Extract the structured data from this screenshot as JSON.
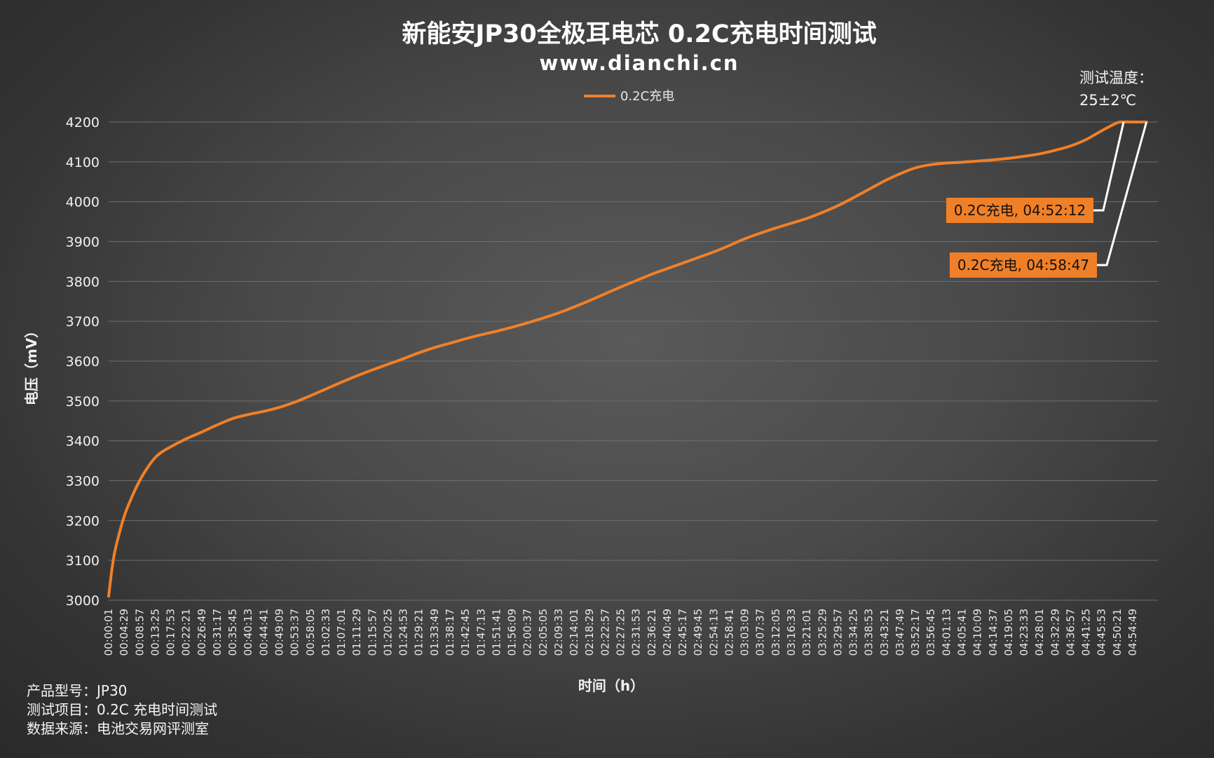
{
  "title": "新能安JP30全极耳电芯 0.2C充电时间测试",
  "subtitle": "www.dianchi.cn",
  "temperature_note": {
    "line1": "测试温度：",
    "line2": "25±2℃"
  },
  "footer": {
    "line1": "产品型号：JP30",
    "line2": "测试项目：0.2C 充电时间测试",
    "line3": "数据来源：电池交易网评测室"
  },
  "callouts": [
    {
      "text": "0.2C充电, 04:52:12",
      "x_sec": 17532,
      "y": 4200
    },
    {
      "text": "0.2C充电, 04:58:47",
      "x_sec": 17927,
      "y": 4200
    }
  ],
  "colors": {
    "series": "#f08028",
    "callout_bg": "#f08028",
    "grid": "#6e6e6e",
    "leader": "#ffffff"
  },
  "chart_data": {
    "type": "line",
    "title": "新能安JP30全极耳电芯 0.2C充电时间测试",
    "subtitle": "www.dianchi.cn",
    "xlabel": "时间（h）",
    "ylabel": "电压（mV）",
    "ylim": [
      3000,
      4200
    ],
    "yticks": [
      3000,
      3100,
      3200,
      3300,
      3400,
      3500,
      3600,
      3700,
      3800,
      3900,
      4000,
      4100,
      4200
    ],
    "grid": true,
    "legend_position": "top-center",
    "x_ticklabels": [
      "00:00:01",
      "00:04:29",
      "00:08:57",
      "00:13:25",
      "00:17:53",
      "00:22:21",
      "00:26:49",
      "00:31:17",
      "00:35:45",
      "00:40:13",
      "00:44:41",
      "00:49:09",
      "00:53:37",
      "00:58:05",
      "01:02:33",
      "01:07:01",
      "01:11:29",
      "01:15:57",
      "01:20:25",
      "01:24:53",
      "01:29:21",
      "01:33:49",
      "01:38:17",
      "01:42:45",
      "01:47:13",
      "01:51:41",
      "01:56:09",
      "02:00:37",
      "02:05:05",
      "02:09:33",
      "02:14:01",
      "02:18:29",
      "02:22:57",
      "02:27:25",
      "02:31:53",
      "02:36:21",
      "02:40:49",
      "02:45:17",
      "02:49:45",
      "02:54:13",
      "02:58:41",
      "03:03:09",
      "03:07:37",
      "03:12:05",
      "03:16:33",
      "03:21:01",
      "03:25:29",
      "03:29:57",
      "03:34:25",
      "03:38:53",
      "03:43:21",
      "03:47:49",
      "03:52:17",
      "03:56:45",
      "04:01:13",
      "04:05:41",
      "04:10:09",
      "04:14:37",
      "04:19:05",
      "04:23:33",
      "04:28:01",
      "04:32:29",
      "04:36:57",
      "04:41:25",
      "04:45:53",
      "04:50:21",
      "04:54:49"
    ],
    "series": [
      {
        "name": "0.2C充电",
        "color": "#f08028",
        "x": [
          "00:00:01",
          "00:01:00",
          "00:02:00",
          "00:04:29",
          "00:07:00",
          "00:08:57",
          "00:11:00",
          "00:13:25",
          "00:15:30",
          "00:17:53",
          "00:22:21",
          "00:26:49",
          "00:31:17",
          "00:35:45",
          "00:40:13",
          "00:44:41",
          "00:49:09",
          "00:53:37",
          "00:58:05",
          "01:02:33",
          "01:07:01",
          "01:11:29",
          "01:15:57",
          "01:20:25",
          "01:24:53",
          "01:29:21",
          "01:33:49",
          "01:38:17",
          "01:42:45",
          "01:47:13",
          "01:51:41",
          "01:56:09",
          "02:00:37",
          "02:05:05",
          "02:09:33",
          "02:14:01",
          "02:18:29",
          "02:22:57",
          "02:27:25",
          "02:31:53",
          "02:36:21",
          "02:40:49",
          "02:45:17",
          "02:49:45",
          "02:54:13",
          "02:58:41",
          "03:03:09",
          "03:07:37",
          "03:12:05",
          "03:16:33",
          "03:21:01",
          "03:25:29",
          "03:29:57",
          "03:34:25",
          "03:38:53",
          "03:43:21",
          "03:47:49",
          "03:52:17",
          "03:56:45",
          "04:01:13",
          "04:05:41",
          "04:10:09",
          "04:14:37",
          "04:19:05",
          "04:23:33",
          "04:28:01",
          "04:32:29",
          "04:36:57",
          "04:41:25",
          "04:45:53",
          "04:50:21",
          "04:52:12",
          "04:54:49",
          "04:58:47"
        ],
        "values": [
          3010,
          3080,
          3130,
          3210,
          3265,
          3300,
          3330,
          3358,
          3373,
          3385,
          3405,
          3422,
          3440,
          3456,
          3466,
          3474,
          3484,
          3497,
          3513,
          3530,
          3547,
          3563,
          3578,
          3592,
          3606,
          3621,
          3634,
          3645,
          3656,
          3666,
          3675,
          3685,
          3696,
          3708,
          3721,
          3736,
          3752,
          3769,
          3786,
          3802,
          3818,
          3832,
          3846,
          3860,
          3874,
          3890,
          3907,
          3921,
          3934,
          3946,
          3958,
          3973,
          3990,
          4010,
          4031,
          4052,
          4070,
          4085,
          4093,
          4097,
          4099,
          4102,
          4105,
          4109,
          4114,
          4120,
          4129,
          4140,
          4156,
          4178,
          4198,
          4200,
          4200,
          4200
        ]
      }
    ]
  }
}
